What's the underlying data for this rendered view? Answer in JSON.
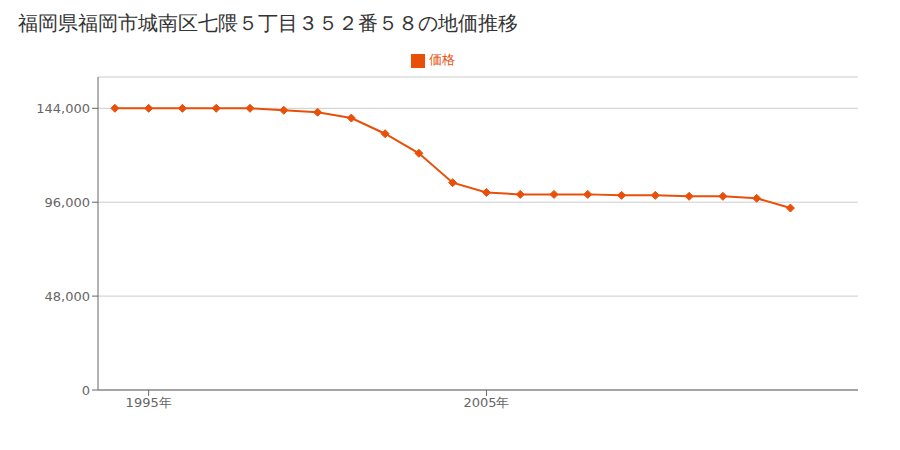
{
  "chart_data": {
    "type": "line",
    "title": "福岡県福岡市城南区七隈５丁目３５２番５８の地価推移",
    "x": [
      1994,
      1995,
      1996,
      1997,
      1998,
      1999,
      2000,
      2001,
      2002,
      2003,
      2004,
      2005,
      2006,
      2007,
      2008,
      2009,
      2010,
      2011,
      2012,
      2013,
      2014
    ],
    "series": [
      {
        "name": "価格",
        "color": "#e8500a",
        "marker": "diamond",
        "values": [
          144000,
          144000,
          144000,
          144000,
          144000,
          143000,
          142000,
          139000,
          131000,
          121000,
          106000,
          101000,
          100000,
          100000,
          100000,
          99500,
          99500,
          99000,
          99000,
          98000,
          93000
        ]
      }
    ],
    "xlim": [
      1993.5,
      2016
    ],
    "xticks": [
      {
        "value": 1995,
        "label": "1995年"
      },
      {
        "value": 2005,
        "label": "2005年"
      }
    ],
    "ylim": [
      0,
      160000
    ],
    "yticks": [
      0,
      {
        "value": 48000,
        "label": "48,000"
      },
      {
        "value": 96000,
        "label": "96,000"
      },
      {
        "value": 144000,
        "label": "144,000"
      }
    ],
    "grid": "y",
    "legend": "top"
  }
}
